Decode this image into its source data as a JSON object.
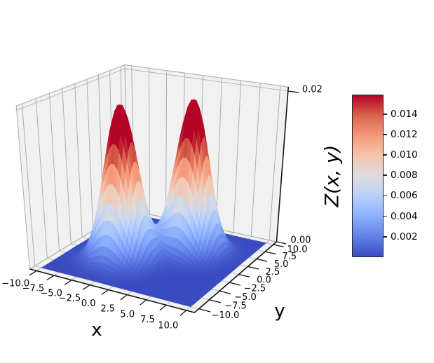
{
  "chart_data": {
    "type": "surface3d",
    "title": "",
    "xlabel": "x",
    "ylabel": "y",
    "x_ticks": {
      "values": [
        -10,
        -7.5,
        -5,
        -2.5,
        0,
        2.5,
        5,
        7.5,
        10
      ],
      "labels": [
        "−10.0",
        "−7.5",
        "−5.0",
        "−2.5",
        "0.0",
        "2.5",
        "5.0",
        "7.5",
        "10.0"
      ]
    },
    "y_ticks": {
      "values": [
        -10,
        -7.5,
        -5,
        -2.5,
        0,
        2.5,
        5,
        7.5,
        10
      ],
      "labels": [
        "−10.0",
        "−7.5",
        "−5.0",
        "−2.5",
        "0.0",
        "2.5",
        "5.0",
        "7.5",
        "10.0"
      ]
    },
    "z_ticks": {
      "values": [
        0,
        0.02
      ],
      "labels": [
        "0.00",
        "0.02"
      ]
    },
    "xlim": [
      -10,
      10
    ],
    "ylim": [
      -10,
      10
    ],
    "zlim": [
      0,
      0.02
    ],
    "surface": {
      "description": "Two-peaked Gaussian surface, flat near zero elsewhere",
      "resolution": 50,
      "components": [
        {
          "center_x": -3,
          "center_y": -3,
          "sigma": 2,
          "peak": 0.0199
        },
        {
          "center_x": 3,
          "center_y": 3,
          "sigma": 2,
          "peak": 0.0199
        }
      ]
    },
    "colormap": {
      "name": "coolwarm",
      "anchors": [
        [
          0.0,
          [
            59,
            76,
            192
          ]
        ],
        [
          0.125,
          [
            98,
            130,
            234
          ]
        ],
        [
          0.25,
          [
            141,
            176,
            254
          ]
        ],
        [
          0.375,
          [
            184,
            208,
            249
          ]
        ],
        [
          0.5,
          [
            221,
            221,
            221
          ]
        ],
        [
          0.625,
          [
            245,
            196,
            173
          ]
        ],
        [
          0.75,
          [
            244,
            154,
            123
          ]
        ],
        [
          0.875,
          [
            215,
            98,
            74
          ]
        ],
        [
          1.0,
          [
            180,
            4,
            38
          ]
        ]
      ]
    },
    "color_norm": {
      "vmin": 0,
      "vmax": 0.0159
    },
    "colorbar": {
      "label": "Z(x, y)",
      "vmin": 0,
      "vmax": 0.0159,
      "tick_values": [
        0.002,
        0.004,
        0.006,
        0.008,
        0.01,
        0.012,
        0.014
      ],
      "tick_labels": [
        "0.002",
        "0.004",
        "0.006",
        "0.008",
        "0.010",
        "0.012",
        "0.014"
      ]
    },
    "view": {
      "elev": 25,
      "azim": -60,
      "dist": 5,
      "z_aspect": 1.15,
      "xy_pad": 1,
      "z_top": 0.0205
    },
    "colors": {
      "background": "#ffffff",
      "pane": "#f1f1f2",
      "floor": "#f2f2f3",
      "wall_grid": "#aeaeae",
      "floor_grid": "#bdbdbd",
      "pane_edge": "#ababab",
      "spine": "#141414",
      "text": "#000000",
      "surface_low": "#3b4cc0",
      "surface_high": "#b40426"
    }
  }
}
